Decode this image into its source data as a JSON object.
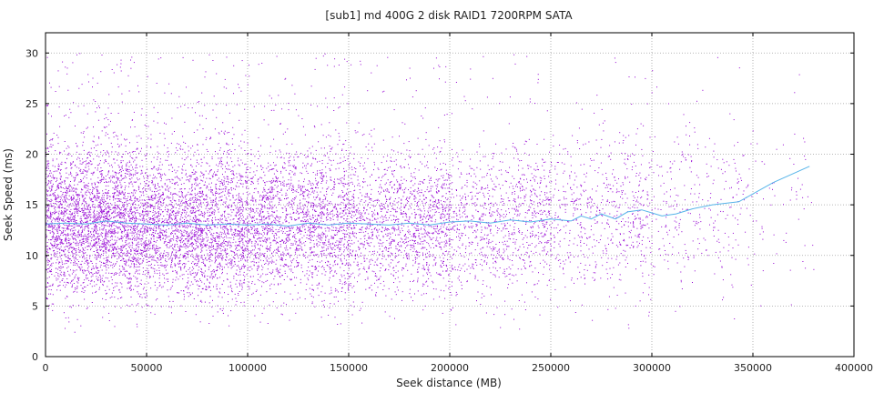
{
  "chart_data": {
    "type": "scatter",
    "title": "[sub1] md 400G 2 disk RAID1 7200RPM SATA",
    "xlabel": "Seek distance (MB)",
    "ylabel": "Seek Speed (ms)",
    "xlim": [
      0,
      400000
    ],
    "ylim": [
      0,
      32
    ],
    "xticks": [
      0,
      50000,
      100000,
      150000,
      200000,
      250000,
      300000,
      350000,
      400000
    ],
    "yticks": [
      0,
      5,
      10,
      15,
      20,
      25,
      30
    ],
    "grid": true,
    "colors": {
      "points": "#9400d3",
      "trend": "#56b4e9",
      "frame": "#000000",
      "grid": "#a0a0a0"
    },
    "series": [
      {
        "type": "scatter",
        "description_note": "",
        "density_bands": [
          {
            "x_from": 0,
            "x_to": 50000,
            "count": 3200,
            "y_mean": 13.2,
            "y_sd": 3.6
          },
          {
            "x_from": 50000,
            "x_to": 100000,
            "count": 2600,
            "y_mean": 13.0,
            "y_sd": 3.5
          },
          {
            "x_from": 100000,
            "x_to": 150000,
            "count": 2000,
            "y_mean": 13.0,
            "y_sd": 3.5
          },
          {
            "x_from": 150000,
            "x_to": 200000,
            "count": 1500,
            "y_mean": 13.1,
            "y_sd": 3.5
          },
          {
            "x_from": 200000,
            "x_to": 250000,
            "count": 1000,
            "y_mean": 13.3,
            "y_sd": 3.6
          },
          {
            "x_from": 250000,
            "x_to": 300000,
            "count": 650,
            "y_mean": 13.8,
            "y_sd": 3.8
          },
          {
            "x_from": 300000,
            "x_to": 350000,
            "count": 300,
            "y_mean": 14.5,
            "y_sd": 4.2
          },
          {
            "x_from": 350000,
            "x_to": 380000,
            "count": 60,
            "y_mean": 15.5,
            "y_sd": 4.5
          }
        ]
      },
      {
        "type": "line",
        "points": [
          [
            0,
            13.1
          ],
          [
            10000,
            13.2
          ],
          [
            20000,
            13.1
          ],
          [
            30000,
            13.4
          ],
          [
            40000,
            13.2
          ],
          [
            50000,
            13.1
          ],
          [
            60000,
            13.0
          ],
          [
            70000,
            13.2
          ],
          [
            80000,
            13.0
          ],
          [
            90000,
            13.1
          ],
          [
            100000,
            13.0
          ],
          [
            110000,
            13.1
          ],
          [
            120000,
            12.9
          ],
          [
            130000,
            13.2
          ],
          [
            140000,
            13.0
          ],
          [
            150000,
            13.2
          ],
          [
            160000,
            13.1
          ],
          [
            170000,
            13.0
          ],
          [
            180000,
            13.2
          ],
          [
            190000,
            13.0
          ],
          [
            200000,
            13.3
          ],
          [
            210000,
            13.4
          ],
          [
            220000,
            13.2
          ],
          [
            230000,
            13.5
          ],
          [
            240000,
            13.3
          ],
          [
            250000,
            13.6
          ],
          [
            260000,
            13.4
          ],
          [
            265000,
            13.9
          ],
          [
            270000,
            13.6
          ],
          [
            275000,
            14.1
          ],
          [
            282000,
            13.6
          ],
          [
            288000,
            14.3
          ],
          [
            295000,
            14.5
          ],
          [
            300000,
            14.2
          ],
          [
            305000,
            13.9
          ],
          [
            312000,
            14.1
          ],
          [
            320000,
            14.6
          ],
          [
            330000,
            15.0
          ],
          [
            343000,
            15.3
          ],
          [
            360000,
            17.2
          ],
          [
            378000,
            18.8
          ]
        ]
      }
    ]
  }
}
